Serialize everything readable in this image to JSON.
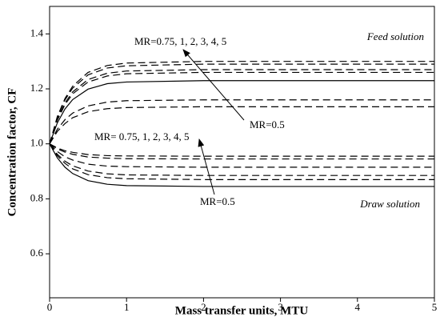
{
  "chart_data": {
    "type": "line",
    "x_label": "Mass transfer units, MTU",
    "y_label": "Concentration factor, CF",
    "x": [
      0,
      0.1,
      0.2,
      0.3,
      0.5,
      0.75,
      1,
      2,
      5
    ],
    "series": [
      {
        "color": "#000000",
        "style": "dashed",
        "values": [
          1,
          1.099,
          1.165,
          1.21,
          1.26,
          1.285,
          1.294,
          1.3,
          1.3
        ]
      },
      {
        "color": "#000000",
        "style": "dashed",
        "values": [
          1,
          1.096,
          1.16,
          1.203,
          1.251,
          1.276,
          1.284,
          1.29,
          1.29
        ]
      },
      {
        "color": "#000000",
        "style": "dashed",
        "values": [
          1,
          1.089,
          1.149,
          1.189,
          1.234,
          1.257,
          1.265,
          1.27,
          1.27
        ]
      },
      {
        "color": "#000000",
        "style": "dashed",
        "values": [
          1,
          1.086,
          1.143,
          1.182,
          1.225,
          1.247,
          1.255,
          1.26,
          1.26
        ]
      },
      {
        "color": "#000000",
        "style": "solid",
        "values": [
          1,
          1.076,
          1.127,
          1.161,
          1.199,
          1.219,
          1.225,
          1.23,
          1.23
        ]
      },
      {
        "color": "#000000",
        "style": "dashed",
        "values": [
          1,
          1.053,
          1.088,
          1.112,
          1.138,
          1.152,
          1.157,
          1.16,
          1.16
        ]
      },
      {
        "color": "#000000",
        "style": "dashed",
        "values": [
          1,
          1.045,
          1.074,
          1.095,
          1.117,
          1.128,
          1.132,
          1.135,
          1.135
        ]
      },
      {
        "color": "#000000",
        "style": "dashed",
        "values": [
          1,
          0.985,
          0.975,
          0.969,
          0.961,
          0.957,
          0.956,
          0.955,
          0.955
        ]
      },
      {
        "color": "#000000",
        "style": "dashed",
        "values": [
          1,
          0.982,
          0.97,
          0.962,
          0.952,
          0.948,
          0.946,
          0.945,
          0.945
        ]
      },
      {
        "color": "#000000",
        "style": "dashed",
        "values": [
          1,
          0.972,
          0.953,
          0.941,
          0.926,
          0.919,
          0.917,
          0.915,
          0.915
        ]
      },
      {
        "color": "#000000",
        "style": "dashed",
        "values": [
          1,
          0.962,
          0.937,
          0.92,
          0.901,
          0.891,
          0.887,
          0.885,
          0.885
        ]
      },
      {
        "color": "#000000",
        "style": "dashed",
        "values": [
          1,
          0.957,
          0.929,
          0.909,
          0.888,
          0.877,
          0.873,
          0.87,
          0.87
        ]
      },
      {
        "color": "#000000",
        "style": "solid",
        "values": [
          1,
          0.949,
          0.915,
          0.892,
          0.866,
          0.853,
          0.848,
          0.845,
          0.845
        ]
      }
    ],
    "annotations": [
      "Feed solution",
      "Draw solution",
      "MR=0.75, 1, 2, 3, 4, 5",
      "MR=0.5",
      "MR= 0.75, 1, 2, 3, 4, 5",
      "MR=0.5"
    ],
    "xlim": [
      0,
      5
    ],
    "xticks": [
      0,
      1,
      2,
      3,
      4,
      5
    ],
    "ylim": [
      0.44,
      1.5
    ],
    "yticks": [
      0.6,
      0.8,
      {
        "value": 1,
        "label": "1.0"
      },
      1.2,
      1.4
    ]
  }
}
